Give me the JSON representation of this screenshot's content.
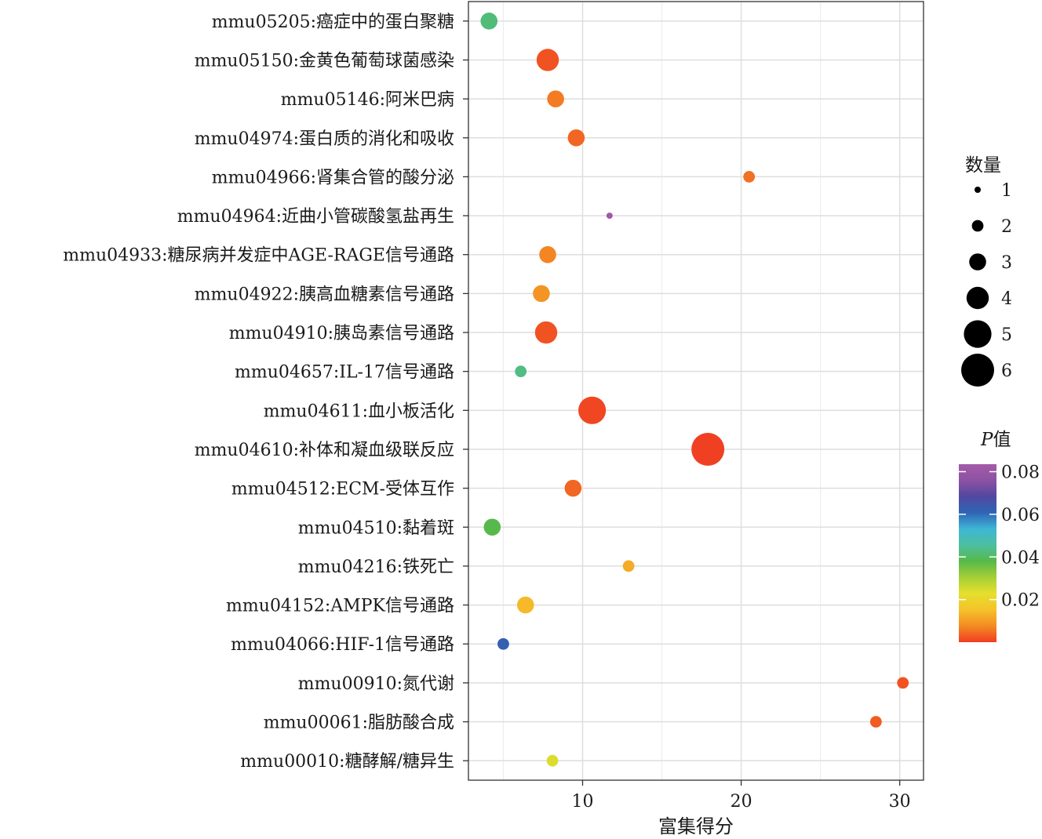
{
  "chart_data": {
    "type": "scatter",
    "xlabel": "富集得分",
    "ylabel": "",
    "xlim": [
      2.8,
      31.5
    ],
    "xticks": [
      10,
      20,
      30
    ],
    "grid": true,
    "categories": [
      "mmu05205:癌症中的蛋白聚糖",
      "mmu05150:金黄色葡萄球菌感染",
      "mmu05146:阿米巴病",
      "mmu04974:蛋白质的消化和吸收",
      "mmu04966:肾集合管的酸分泌",
      "mmu04964:近曲小管碳酸氢盐再生",
      "mmu04933:糖尿病并发症中AGE-RAGE信号通路",
      "mmu04922:胰高血糖素信号通路",
      "mmu04910:胰岛素信号通路",
      "mmu04657:IL-17信号通路",
      "mmu04611:血小板活化",
      "mmu04610:补体和凝血级联反应",
      "mmu04512:ECM-受体互作",
      "mmu04510:黏着斑",
      "mmu04216:铁死亡",
      "mmu04152:AMPK信号通路",
      "mmu04066:HIF-1信号通路",
      "mmu00910:氮代谢",
      "mmu00061:脂肪酸合成",
      "mmu00010:糖酵解/糖异生"
    ],
    "points": [
      {
        "x": 4.1,
        "count": 3,
        "p": 0.042
      },
      {
        "x": 7.8,
        "count": 4,
        "p": 0.002
      },
      {
        "x": 8.3,
        "count": 3,
        "p": 0.006
      },
      {
        "x": 9.6,
        "count": 3,
        "p": 0.004
      },
      {
        "x": 20.5,
        "count": 2,
        "p": 0.005
      },
      {
        "x": 11.7,
        "count": 1,
        "p": 0.082
      },
      {
        "x": 7.8,
        "count": 3,
        "p": 0.007
      },
      {
        "x": 7.4,
        "count": 3,
        "p": 0.009
      },
      {
        "x": 7.7,
        "count": 4,
        "p": 0.002
      },
      {
        "x": 6.1,
        "count": 2,
        "p": 0.043
      },
      {
        "x": 10.6,
        "count": 5,
        "p": 0.001
      },
      {
        "x": 17.9,
        "count": 6,
        "p": 0.0003
      },
      {
        "x": 9.4,
        "count": 3,
        "p": 0.004
      },
      {
        "x": 4.3,
        "count": 3,
        "p": 0.038
      },
      {
        "x": 12.9,
        "count": 2,
        "p": 0.012
      },
      {
        "x": 6.4,
        "count": 3,
        "p": 0.014
      },
      {
        "x": 5.0,
        "count": 2,
        "p": 0.062
      },
      {
        "x": 30.2,
        "count": 2,
        "p": 0.002
      },
      {
        "x": 28.5,
        "count": 2,
        "p": 0.003
      },
      {
        "x": 8.1,
        "count": 2,
        "p": 0.024
      }
    ],
    "size_legend": {
      "title": "数量",
      "values": [
        1,
        2,
        3,
        4,
        5,
        6
      ],
      "labels": [
        "1",
        "2",
        "3",
        "4",
        "5",
        "6"
      ]
    },
    "color_legend": {
      "title_italic": "P",
      "title_rest": "值",
      "min": 0,
      "max": 0.0835,
      "ticks": [
        0.02,
        0.04,
        0.06,
        0.08
      ],
      "tick_labels": [
        "0.02",
        "0.04",
        "0.06",
        "0.08"
      ],
      "colors": [
        "#f03d22",
        "#f38b23",
        "#f5c22a",
        "#e6df2d",
        "#a6cf37",
        "#57b94a",
        "#4cbfa0",
        "#3fb6d6",
        "#2f65b4",
        "#5148a0",
        "#8d52a3",
        "#a55aa9"
      ]
    }
  }
}
